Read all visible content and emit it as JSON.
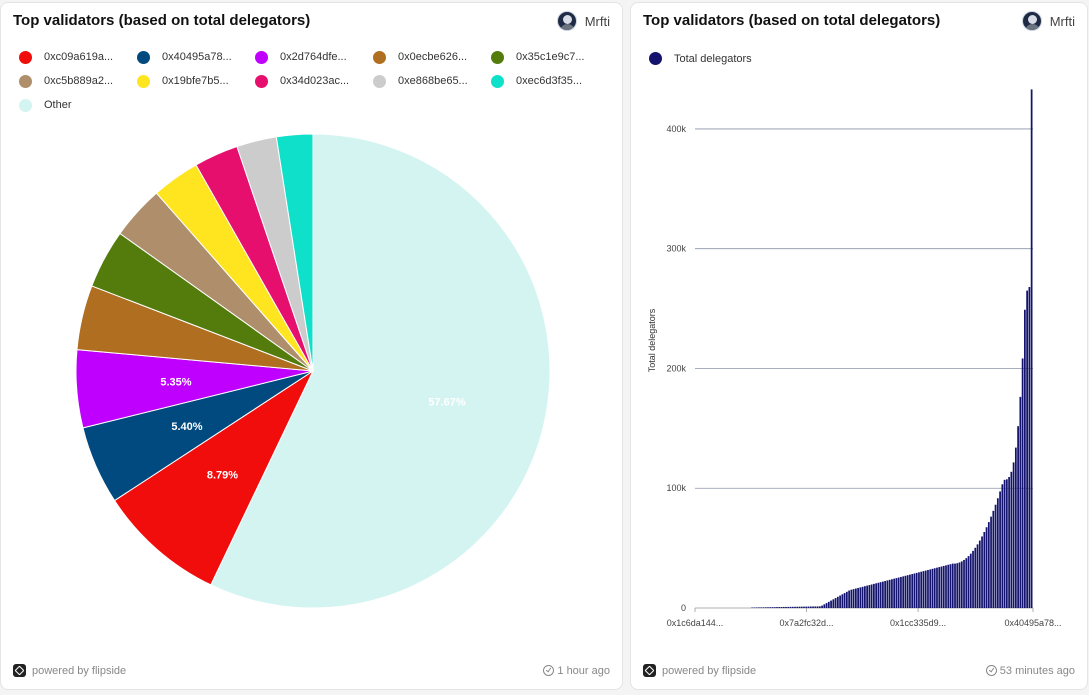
{
  "left_card": {
    "title": "Top validators (based on total delegators)",
    "author": "Mrfti",
    "powered_by": "powered by flipside",
    "updated": "1 hour ago"
  },
  "right_card": {
    "title": "Top validators (based on total delegators)",
    "author": "Mrfti",
    "powered_by": "powered by flipside",
    "updated": "53 minutes ago"
  },
  "chart_data": [
    {
      "type": "pie",
      "title": "Top validators (based on total delegators)",
      "legend_position": "top",
      "slices": [
        {
          "label": "0xc09a619a...",
          "value": 8.79,
          "color": "#f20d0d",
          "show_label": true
        },
        {
          "label": "0x40495a78...",
          "value": 5.4,
          "color": "#004a80",
          "show_label": true
        },
        {
          "label": "0x2d764dfe...",
          "value": 5.35,
          "color": "#bf00ff",
          "show_label": true
        },
        {
          "label": "0x0ecbe626...",
          "value": 4.45,
          "color": "#b06e21",
          "show_label": false
        },
        {
          "label": "0x35c1e9c7...",
          "value": 4.05,
          "color": "#537c0d",
          "show_label": false
        },
        {
          "label": "0xc5b889a2...",
          "value": 3.7,
          "color": "#ae8e6b",
          "show_label": false
        },
        {
          "label": "0x19bfe7b5...",
          "value": 3.3,
          "color": "#ffe420",
          "show_label": false
        },
        {
          "label": "0x34d023ac...",
          "value": 3.05,
          "color": "#e60f6e",
          "show_label": false
        },
        {
          "label": "0xe868be65...",
          "value": 2.75,
          "color": "#cccccc",
          "show_label": false
        },
        {
          "label": "0xec6d3f35...",
          "value": 2.5,
          "color": "#0fe0c9",
          "show_label": false
        },
        {
          "label": "Other",
          "value": 57.67,
          "color": "#d4f4f1",
          "show_label": true
        }
      ],
      "data_labels": [
        "8.79%",
        "5.40%",
        "5.35%",
        "57.67%"
      ]
    },
    {
      "type": "bar",
      "title": "Top validators (based on total delegators)",
      "ylabel": "Total delegators",
      "ylim": [
        0,
        430000
      ],
      "y_ticks": [
        "0",
        "100k",
        "200k",
        "300k",
        "400k"
      ],
      "y_tick_values": [
        0,
        100000,
        200000,
        300000,
        400000
      ],
      "x_tick_labels": [
        "0x1c6da144...",
        "0x7a2fc32d...",
        "0x1cc335d9...",
        "0x40495a78..."
      ],
      "grid": true,
      "legend_position": "top-left",
      "series": [
        {
          "name": "Total delegators",
          "color": "#14146e"
        }
      ],
      "distribution": {
        "bar_count": 150,
        "empty_leading_bars": 25,
        "max_value": 433000,
        "values_approx": "sorted ascending; near 0 for first ~60 bars, ~15k to ~60k in the middle, rising steeply to 433k at the last bar"
      }
    }
  ]
}
